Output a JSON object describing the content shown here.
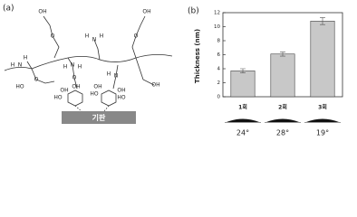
{
  "panel_a": {
    "label": "(a)",
    "substrate": "기판",
    "groups": [
      "OH",
      "O",
      "OH",
      "O",
      "H",
      "N",
      "H",
      "H",
      "N",
      "H",
      "N",
      "H",
      "H",
      "N",
      "H",
      "O",
      "HO",
      "O",
      "OH",
      "OH",
      "HO",
      "OH",
      "HO",
      "OH",
      "OH",
      "HO"
    ]
  },
  "chart_data": {
    "type": "bar",
    "panel_label": "(b)",
    "ylabel": "Thickness (nm)",
    "categories": [
      "1회",
      "2회",
      "3회"
    ],
    "values": [
      3.7,
      6.1,
      10.8
    ],
    "errors": [
      0.3,
      0.3,
      0.5
    ],
    "color": "#c8c8c8",
    "ylim": [
      0,
      12
    ],
    "yticks": [
      0,
      2,
      4,
      6,
      8,
      10,
      12
    ],
    "contact_angles": [
      "24°",
      "28°",
      "19°"
    ]
  }
}
